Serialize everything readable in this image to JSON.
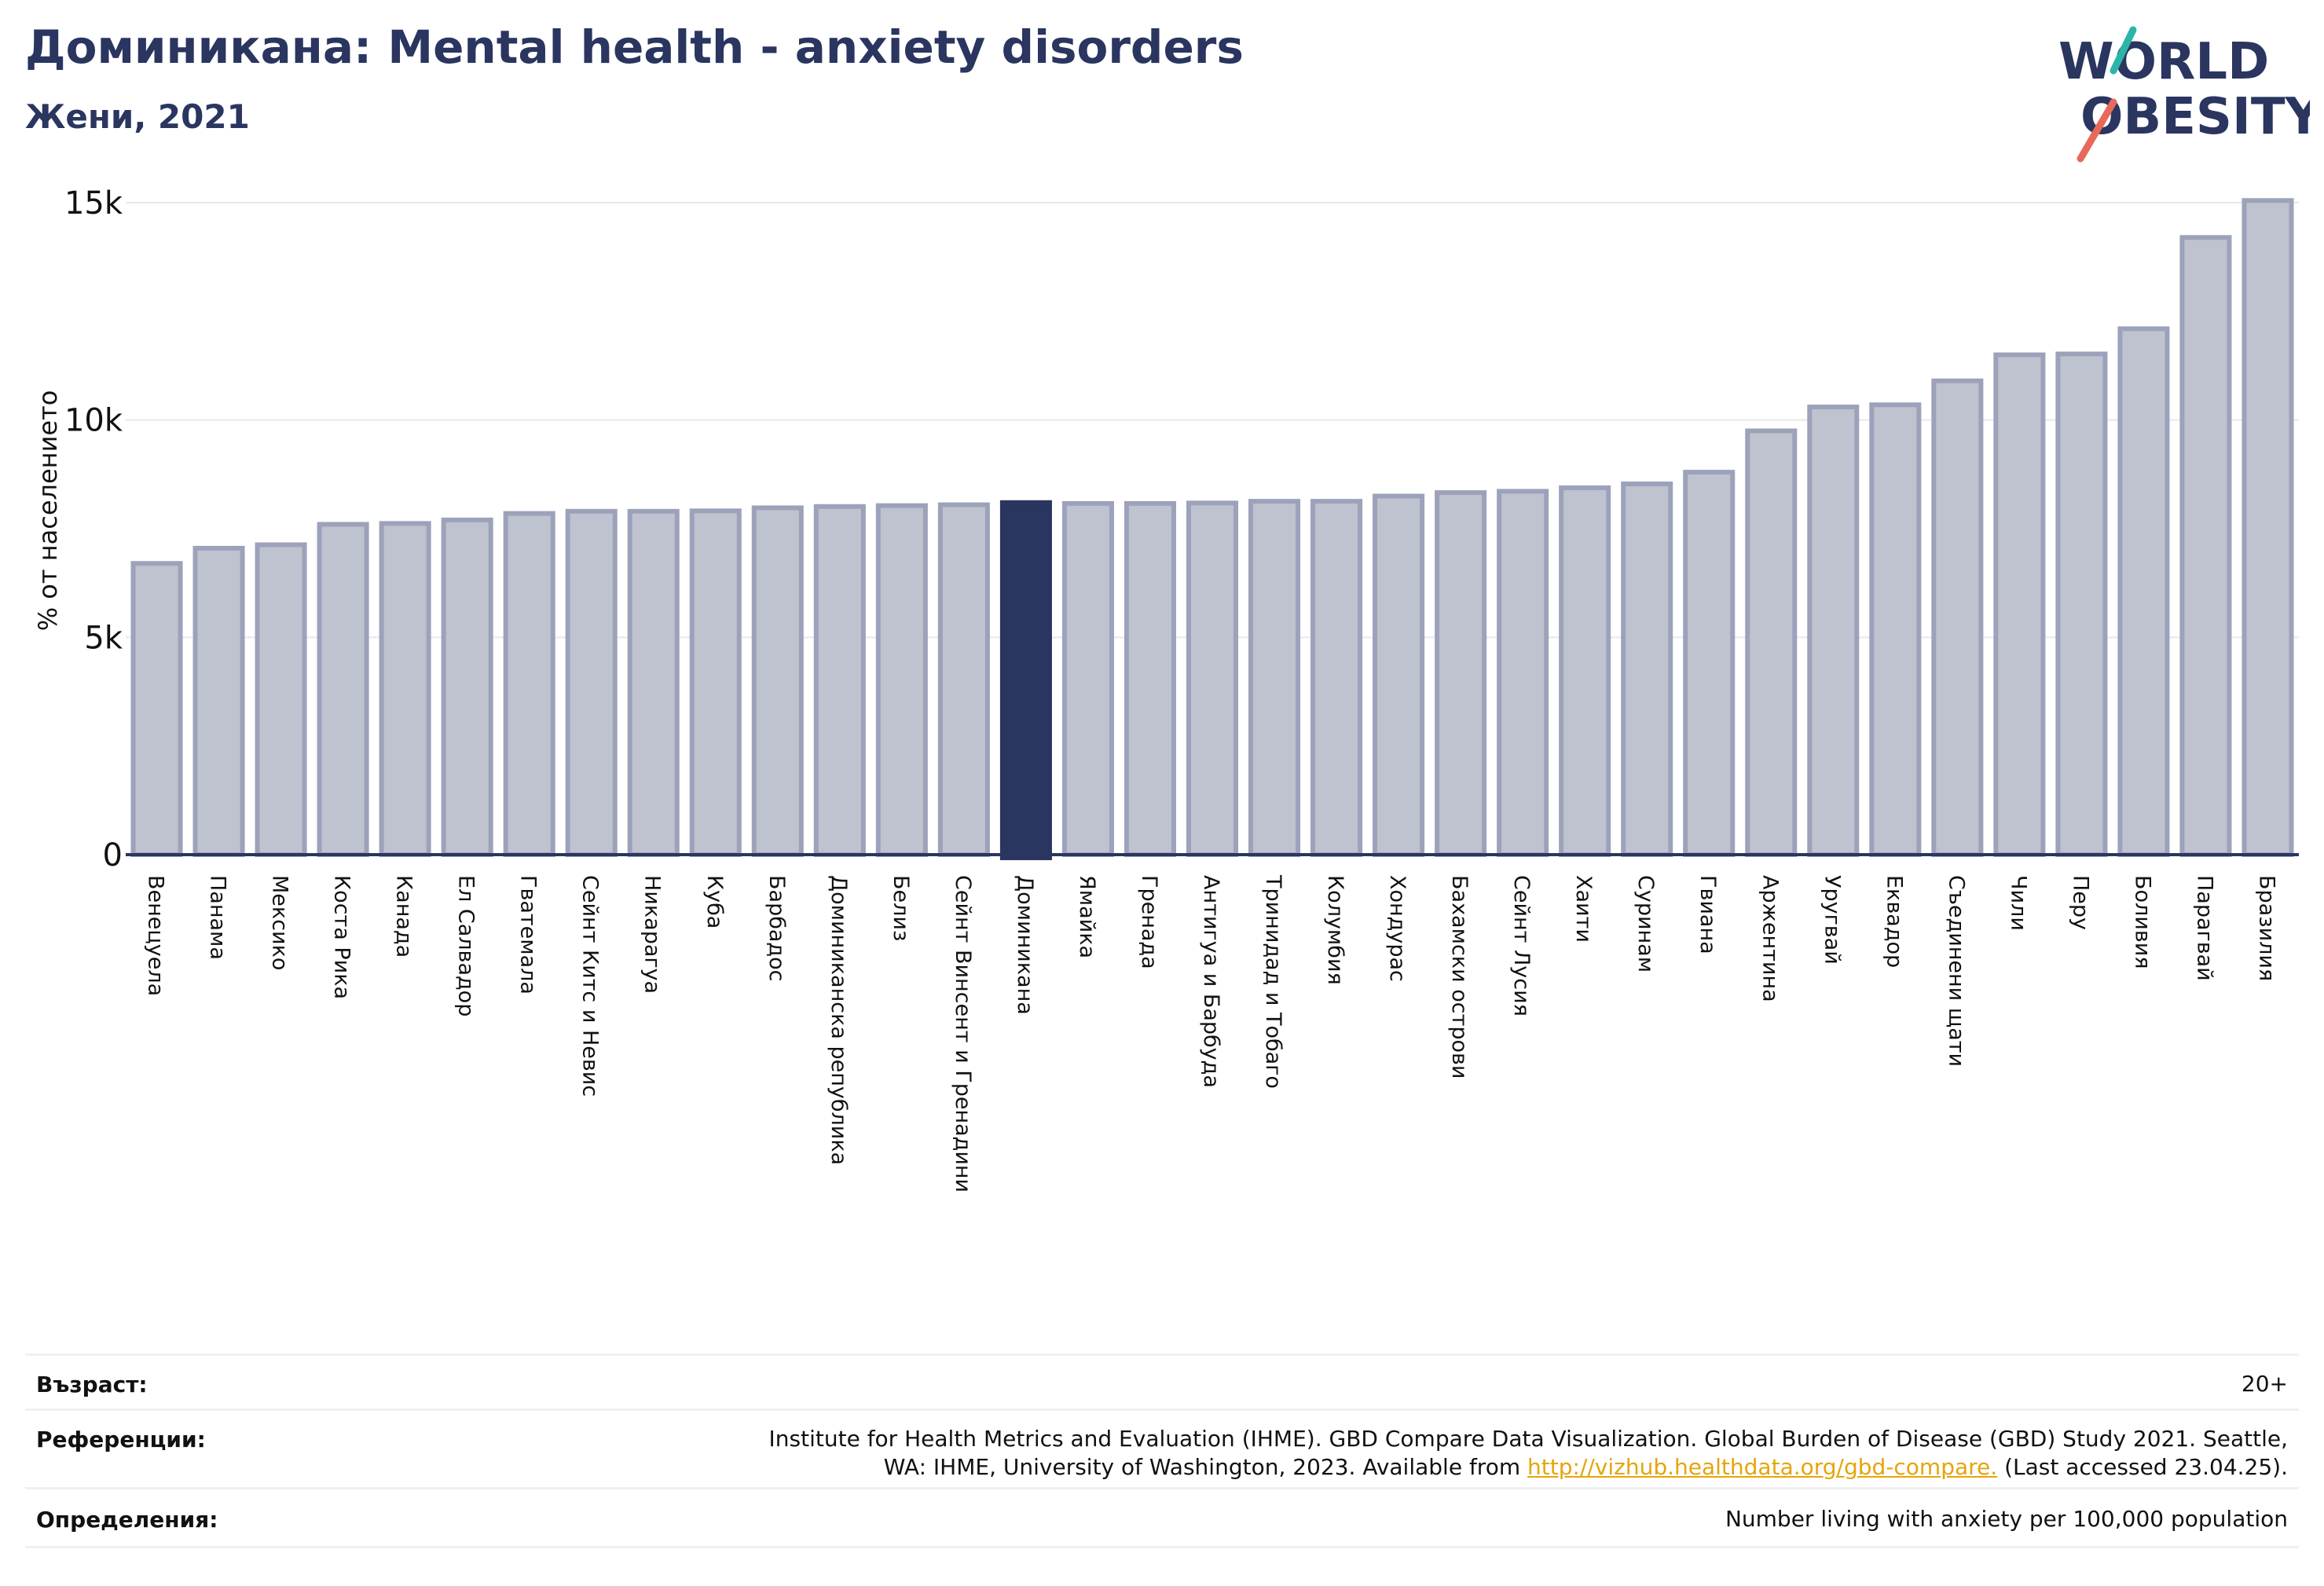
{
  "header": {
    "title": "Доминикана: Mental health - anxiety disorders",
    "subtitle": "Жени, 2021"
  },
  "logo": {
    "line1": "WORLD",
    "line2": "OBESITY"
  },
  "colors": {
    "bar": "#bfc2cf",
    "bar_edge": "#9da2bb",
    "highlight": "#2a3560",
    "title": "#2a3560"
  },
  "chart_data": {
    "type": "bar",
    "ylabel": "% от населението",
    "ylim": [
      0,
      15000
    ],
    "yticks": [
      {
        "value": 0,
        "label": "0"
      },
      {
        "value": 5000,
        "label": "5k"
      },
      {
        "value": 10000,
        "label": "10k"
      },
      {
        "value": 15000,
        "label": "15k"
      }
    ],
    "grid": true,
    "highlight": "Доминикана",
    "categories": [
      "Венецуела",
      "Панама",
      "Мексико",
      "Коста Рика",
      "Канада",
      "Ел Салвадор",
      "Гватемала",
      "Сейнт Китс и Невис",
      "Никарагуа",
      "Куба",
      "Барбадос",
      "Доминиканска република",
      "Белиз",
      "Сейнт Винсент и Гренадини",
      "Доминикана",
      "Ямайка",
      "Гренада",
      "Антигуа и Барбуда",
      "Тринидад и Тобаго",
      "Колумбия",
      "Хондурас",
      "Бахамски острови",
      "Сейнт Лусия",
      "Хаити",
      "Суринам",
      "Гвиана",
      "Аржентина",
      "Уругвай",
      "Еквадор",
      "Съединени щати",
      "Чили",
      "Перу",
      "Боливия",
      "Парагвай",
      "Бразилия"
    ],
    "values": [
      6700,
      7050,
      7130,
      7600,
      7620,
      7700,
      7850,
      7900,
      7900,
      7910,
      7980,
      8010,
      8030,
      8050,
      8100,
      8080,
      8080,
      8090,
      8130,
      8130,
      8250,
      8330,
      8360,
      8440,
      8530,
      8800,
      9750,
      10300,
      10350,
      10900,
      11500,
      11520,
      12100,
      14200,
      15050
    ]
  },
  "info": {
    "age_label": "Възраст:",
    "age_value": "20+",
    "ref_label": "Референции:",
    "ref_text1": "Institute for Health Metrics and Evaluation (IHME). GBD Compare Data Visualization. Global Burden of Disease (GBD) Study 2021. Seattle,",
    "ref_text2": "WA: IHME, University of Washington, 2023. Available from",
    "ref_link": "http://vizhub.healthdata.org/gbd-compare.",
    "ref_text3": "(Last accessed 23.04.25).",
    "def_label": "Определения:",
    "def_value": "Number living with anxiety per 100,000 population"
  }
}
